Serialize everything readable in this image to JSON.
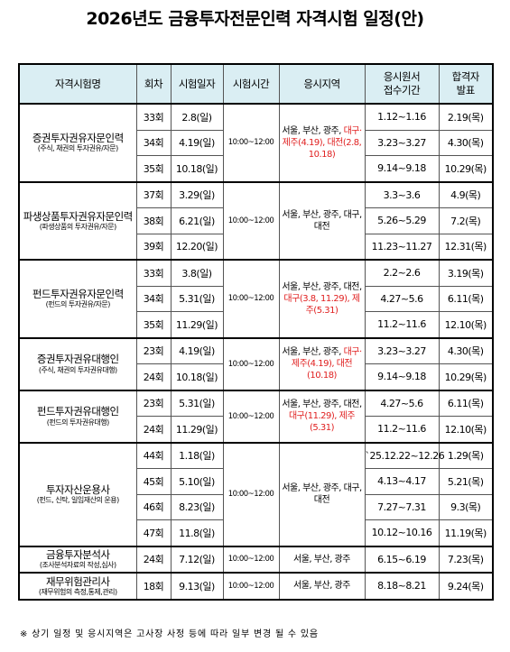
{
  "title": "2026년도 금융투자전문인력 자격시험 일정(안)",
  "header": [
    "자격시험명",
    "회차",
    "시험일자",
    "시험시간",
    "응시지역",
    "응시원서\n접수기간",
    "합격자\n발표"
  ],
  "groups": [
    {
      "name": "증권투자권유자문인력",
      "sub": "(주식, 채권의 투자권유/자문)",
      "time": "10:00~12:00",
      "region": "서울, 부산, 광주,",
      "region_changes": "대구·제주(4.19), 대전(2.8, 10.18)",
      "rows": [
        [
          "33회",
          "2.8(일)",
          "1.12~1.16",
          "2.19(목)"
        ],
        [
          "34회",
          "4.19(일)",
          "3.23~3.27",
          "4.30(목)"
        ],
        [
          "35회",
          "10.18(일)",
          "9.14~9.18",
          "10.29(목)"
        ]
      ]
    },
    {
      "name": "파생상품투자권유자문인력",
      "sub": "(파생상품의 투자권유/자문)",
      "time": "10:00~12:00",
      "region": "서울, 부산, 광주, 대구, 대전",
      "rows": [
        [
          "37회",
          "3.29(일)",
          "3.3~3.6",
          "4.9(목)"
        ],
        [
          "38회",
          "6.21(일)",
          "5.26~5.29",
          "7.2(목)"
        ],
        [
          "39회",
          "12.20(일)",
          "11.23~11.27",
          "12.31(목)"
        ]
      ]
    },
    {
      "name": "펀드투자권유자문인력",
      "sub": "(펀드의 투자권유/자문)",
      "time": "10:00~12:00",
      "region": "서울, 부산, 광주, 대전,",
      "region_changes": "대구(3.8, 11.29), 제주(5.31)",
      "rows": [
        [
          "33회",
          "3.8(일)",
          "2.2~2.6",
          "3.19(목)"
        ],
        [
          "34회",
          "5.31(일)",
          "4.27~5.6",
          "6.11(목)"
        ],
        [
          "35회",
          "11.29(일)",
          "11.2~11.6",
          "12.10(목)"
        ]
      ]
    },
    {
      "name": "증권투자권유대행인",
      "sub": "(주식, 채권의 투자권유대행)",
      "time": "10:00~12:00",
      "region": "서울, 부산, 광주,",
      "region_changes": "대구·제주(4.19), 대전(10.18)",
      "rows": [
        [
          "23회",
          "4.19(일)",
          "3.23~3.27",
          "4.30(목)"
        ],
        [
          "24회",
          "10.18(일)",
          "9.14~9.18",
          "10.29(목)"
        ]
      ]
    },
    {
      "name": "펀드투자권유대행인",
      "sub": "(펀드의 투자권유대행)",
      "time": "10:00~12:00",
      "region": "서울, 부산, 광주, 대전,",
      "region_changes": "대구(11.29), 제주(5.31)",
      "rows": [
        [
          "23회",
          "5.31(일)",
          "4.27~5.6",
          "6.11(목)"
        ],
        [
          "24회",
          "11.29(일)",
          "11.2~11.6",
          "12.10(목)"
        ]
      ]
    },
    {
      "name": "투자자산운용사",
      "sub": "(펀드, 신탁, 일임재산의 운용)",
      "time": "10:00~12:00",
      "region": "서울, 부산, 광주, 대구, 대전",
      "rows": [
        [
          "44회",
          "1.18(일)",
          "`25.12.22~12.26",
          "1.29(목)"
        ],
        [
          "45회",
          "5.10(일)",
          "4.13~4.17",
          "5.21(목)"
        ],
        [
          "46회",
          "8.23(일)",
          "7.27~7.31",
          "9.3(목)"
        ],
        [
          "47회",
          "11.8(일)",
          "10.12~10.16",
          "11.19(목)"
        ]
      ]
    },
    {
      "name": "금융투자분석사",
      "sub": "(조사분석자료의 작성,심사)",
      "time": "10:00~12:00",
      "region": "서울, 부산, 광주",
      "rows": [
        [
          "24회",
          "7.12(일)",
          "6.15~6.19",
          "7.23(목)"
        ]
      ]
    },
    {
      "name": "재무위험관리사",
      "sub": "(재무위험의 측정,통제,관리)",
      "time": "10:00~12:00",
      "region": "서울, 부산, 광주",
      "rows": [
        [
          "18회",
          "9.13(일)",
          "8.18~8.21",
          "9.24(목)"
        ]
      ]
    }
  ],
  "footnote": "※ 상기 일정 및 응시지역은 고사장 사정 등에 따라 일부 변경 될 수 있음"
}
